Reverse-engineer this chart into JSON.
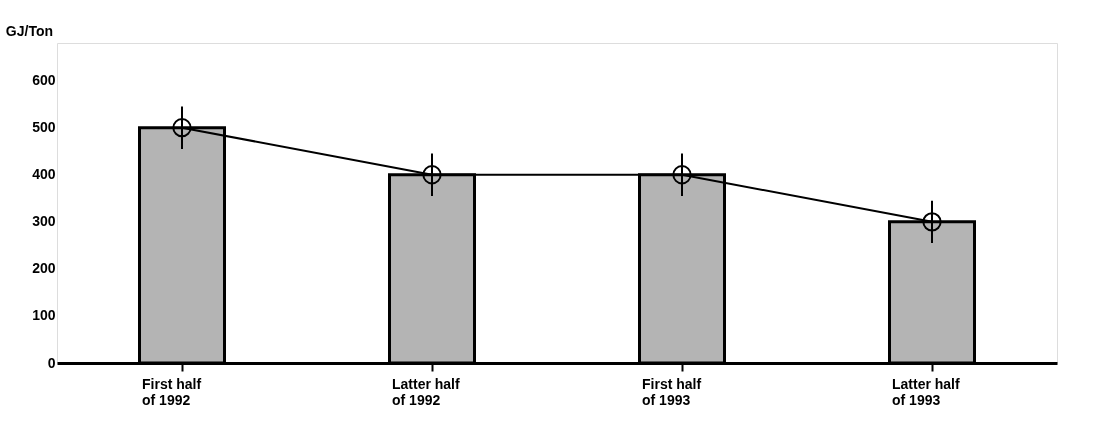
{
  "chart_data": {
    "type": "bar",
    "ylabel": "GJ/Ton",
    "categories": [
      "First half\nof 1992",
      "Latter half\nof 1992",
      "First half\nof 1993",
      "Latter half\nof 1993"
    ],
    "series": [
      {
        "color": "#b4b4b4",
        "values": [
          500,
          400,
          400,
          300
        ]
      },
      {
        "type": "line",
        "color": "#000000",
        "values": [
          500,
          400,
          400,
          300
        ],
        "errors": [
          45,
          45,
          45,
          45
        ],
        "marker": "circle"
      }
    ],
    "ylim": [
      0,
      680
    ],
    "yticks": [
      0,
      100,
      200,
      300,
      400,
      500,
      600
    ],
    "grid": false
  }
}
